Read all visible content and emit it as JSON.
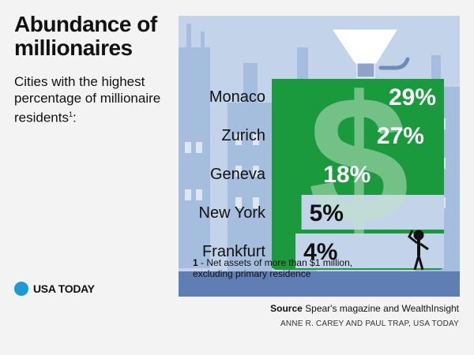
{
  "title": "Abundance of millionaires",
  "subtitle": "Cities with the highest percentage of millionaire residents",
  "subtitle_note_mark": "1",
  "subtitle_suffix": ":",
  "brand": "USA TODAY",
  "footnote": {
    "number": "1",
    "text": "- Net assets of more than $1 million, excluding primary residence"
  },
  "source_label": "Source",
  "source_text": "Spear's magazine and WealthInsight",
  "credit": "ANNE R. CAREY AND PAUL TRAP, USA TODAY",
  "icons": [
    "dollar-sign-icon",
    "funnel-icon",
    "faucet-icon",
    "person-icon",
    "skyline-icon"
  ],
  "colors": {
    "bar": "#1a9a3c",
    "sky": "#c3d4ea",
    "buildings": "#a6bedd",
    "window": "#dde7f4",
    "ground": "#5f7fb4",
    "text_on_bar": "#ffffff",
    "text_dark": "#111111",
    "brand_dot": "#1a9ad6"
  },
  "chart_data": {
    "type": "bar",
    "orientation": "horizontal",
    "categories": [
      "Monaco",
      "Zurich",
      "Geneva",
      "New York",
      "Frankfurt"
    ],
    "values": [
      29,
      27,
      18,
      5,
      4
    ],
    "value_labels": [
      "29%",
      "27%",
      "18%",
      "5%",
      "4%"
    ],
    "unit": "%",
    "title": "Abundance of millionaires",
    "subtitle": "Cities with the highest percentage of millionaire residents",
    "xlim": [
      0,
      29
    ],
    "grid": false,
    "legend": "none"
  }
}
